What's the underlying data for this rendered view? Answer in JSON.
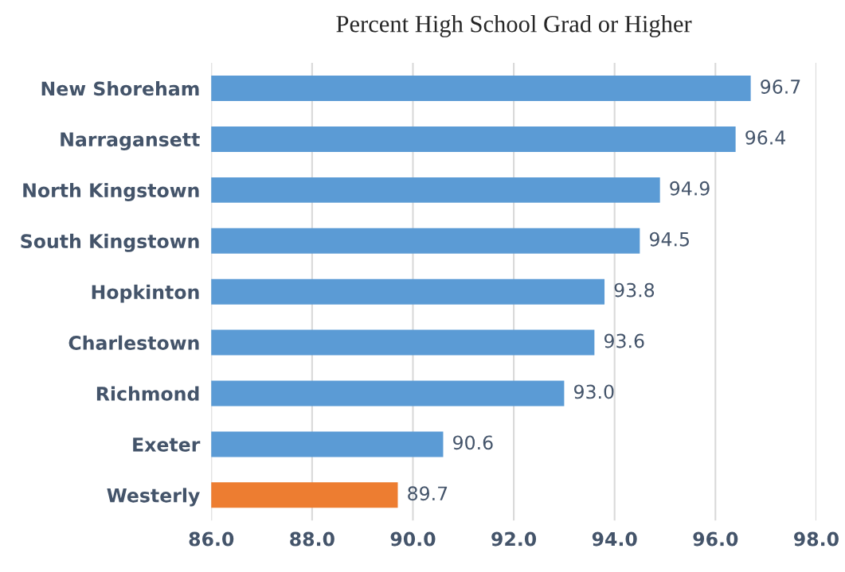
{
  "chart_data": {
    "type": "bar",
    "orientation": "horizontal",
    "title": "Percent High School Grad or Higher",
    "categories": [
      "New Shoreham",
      "Narragansett",
      "North Kingstown",
      "South Kingstown",
      "Hopkinton",
      "Charlestown",
      "Richmond",
      "Exeter",
      "Westerly"
    ],
    "values": [
      96.7,
      96.4,
      94.9,
      94.5,
      93.8,
      93.6,
      93.0,
      90.6,
      89.7
    ],
    "colors": [
      "#5b9bd5",
      "#5b9bd5",
      "#5b9bd5",
      "#5b9bd5",
      "#5b9bd5",
      "#5b9bd5",
      "#5b9bd5",
      "#5b9bd5",
      "#ed7d31"
    ],
    "xlim": [
      86,
      98
    ],
    "xticks": [
      {
        "value": 86,
        "label": "86.0"
      },
      {
        "value": 88,
        "label": "88.0"
      },
      {
        "value": 90,
        "label": "90.0"
      },
      {
        "value": 92,
        "label": "92.0"
      },
      {
        "value": 94,
        "label": "94.0"
      },
      {
        "value": 96,
        "label": "96.0"
      },
      {
        "value": 98,
        "label": "98.0"
      }
    ],
    "value_labels": [
      "96.7",
      "96.4",
      "94.9",
      "94.5",
      "93.8",
      "93.6",
      "93.0",
      "90.6",
      "89.7"
    ],
    "grid": "x"
  }
}
